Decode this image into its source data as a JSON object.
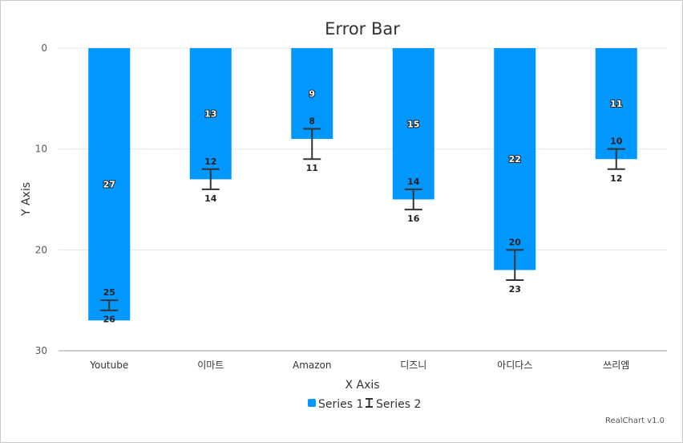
{
  "chart_data": {
    "type": "bar",
    "title": "Error Bar",
    "xlabel": "X Axis",
    "ylabel": "Y Axis",
    "ylim": [
      0,
      30
    ],
    "y_reversed": true,
    "y_ticks": [
      0,
      10,
      20,
      30
    ],
    "grid": true,
    "categories": [
      "Youtube",
      "이마트",
      "Amazon",
      "디즈니",
      "아디다스",
      "쓰리엠"
    ],
    "series": [
      {
        "name": "Series 1",
        "kind": "bar",
        "color": "#0098ff",
        "values": [
          27,
          13,
          9,
          15,
          22,
          11
        ]
      },
      {
        "name": "Series 2",
        "kind": "errorbar",
        "color": "#333333",
        "low": [
          25,
          12,
          8,
          14,
          20,
          10
        ],
        "high": [
          26,
          14,
          11,
          16,
          23,
          12
        ]
      }
    ],
    "legend_position": "bottom"
  },
  "credit": "RealChart v1.0"
}
